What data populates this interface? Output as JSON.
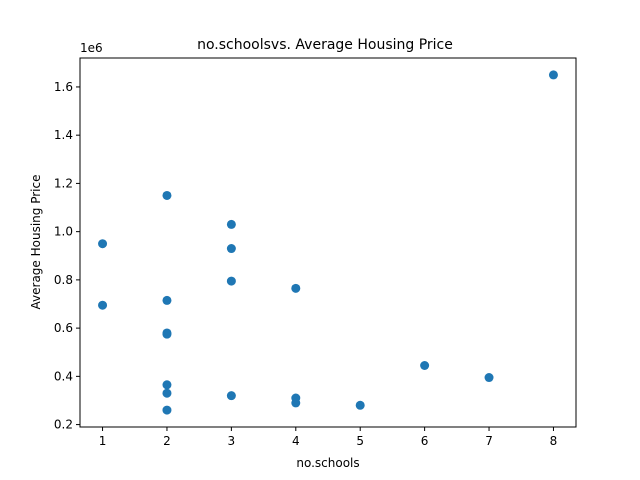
{
  "chart_data": {
    "type": "scatter",
    "title": "no.schoolsvs. Average Housing Price",
    "xlabel": "no.schools",
    "ylabel": "Average Housing Price",
    "y_offset_label": "1e6",
    "xlim": [
      0.65,
      8.35
    ],
    "ylim": [
      0.19,
      1.72
    ],
    "xticks": [
      1,
      2,
      3,
      4,
      5,
      6,
      7,
      8
    ],
    "yticks": [
      0.2,
      0.4,
      0.6,
      0.8,
      1.0,
      1.2,
      1.4,
      1.6
    ],
    "ytick_labels": [
      "0.2",
      "0.4",
      "0.6",
      "0.8",
      "1.0",
      "1.2",
      "1.4",
      "1.6"
    ],
    "grid": false,
    "marker_color": "#1f77b4",
    "series": [
      {
        "points": [
          {
            "x": 1,
            "y": 0.95
          },
          {
            "x": 1,
            "y": 0.695
          },
          {
            "x": 2,
            "y": 1.15
          },
          {
            "x": 2,
            "y": 0.715
          },
          {
            "x": 2,
            "y": 0.58
          },
          {
            "x": 2,
            "y": 0.575
          },
          {
            "x": 2,
            "y": 0.365
          },
          {
            "x": 2,
            "y": 0.33
          },
          {
            "x": 2,
            "y": 0.26
          },
          {
            "x": 3,
            "y": 1.03
          },
          {
            "x": 3,
            "y": 0.93
          },
          {
            "x": 3,
            "y": 0.795
          },
          {
            "x": 3,
            "y": 0.32
          },
          {
            "x": 4,
            "y": 0.765
          },
          {
            "x": 4,
            "y": 0.31
          },
          {
            "x": 4,
            "y": 0.29
          },
          {
            "x": 5,
            "y": 0.28
          },
          {
            "x": 6,
            "y": 0.445
          },
          {
            "x": 7,
            "y": 0.395
          },
          {
            "x": 8,
            "y": 1.65
          }
        ]
      }
    ]
  }
}
